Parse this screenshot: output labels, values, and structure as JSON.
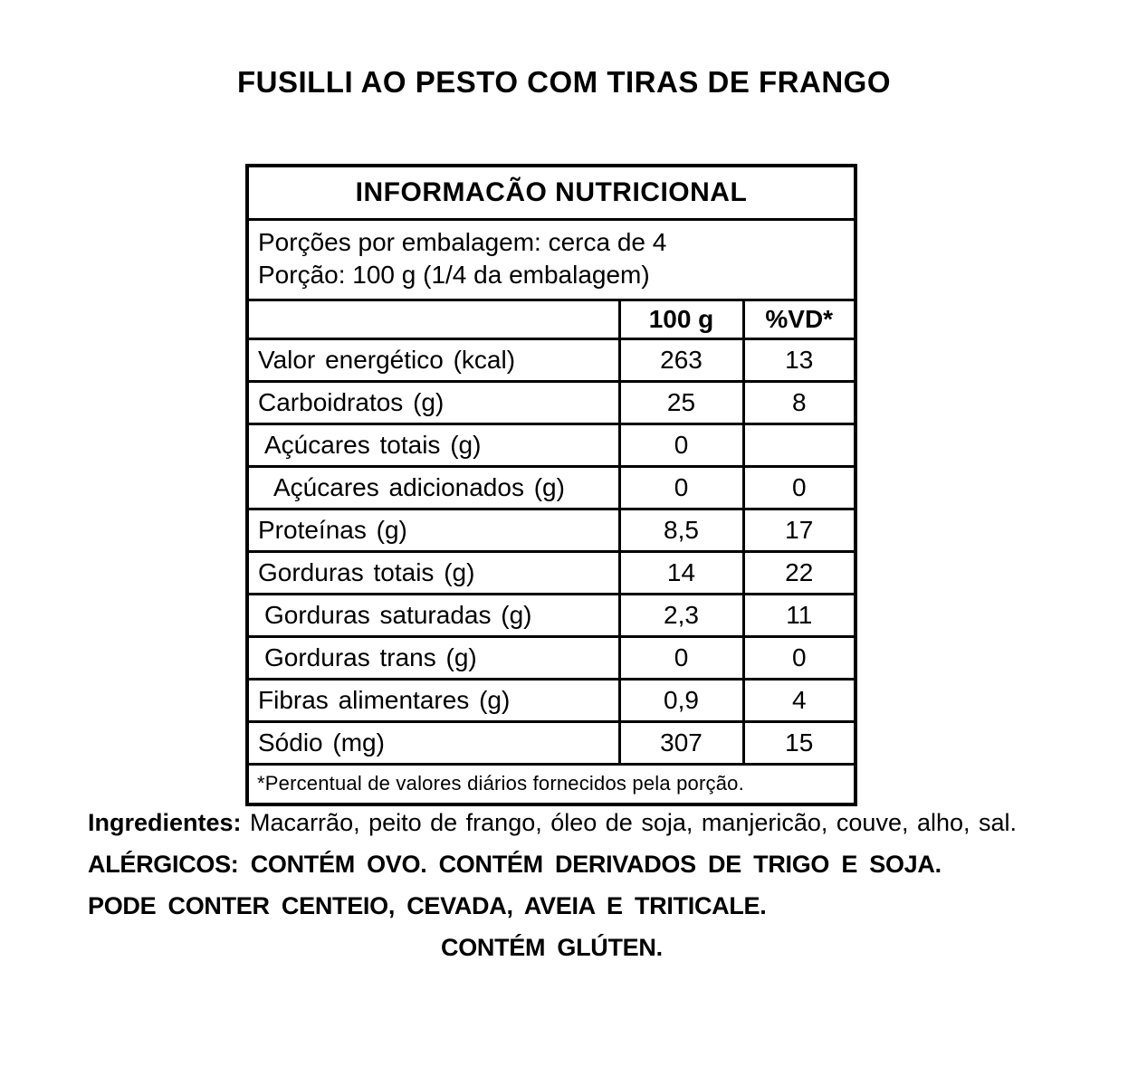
{
  "page": {
    "title": "FUSILLI AO PESTO COM TIRAS DE FRANGO"
  },
  "nutrition": {
    "title": "INFORMACÃO NUTRICIONAL",
    "serving_lines": [
      "Porções por embalagem: cerca de 4",
      "Porção: 100 g (1/4 da embalagem)"
    ],
    "columns": [
      "",
      "100 g",
      "%VD*"
    ],
    "rows": [
      {
        "label": "Valor energético (kcal)",
        "indent": 0,
        "per100g": "263",
        "vd": "13"
      },
      {
        "label": "Carboidratos (g)",
        "indent": 0,
        "per100g": "25",
        "vd": "8"
      },
      {
        "label": "Açúcares totais (g)",
        "indent": 1,
        "per100g": "0",
        "vd": ""
      },
      {
        "label": "Açúcares adicionados (g)",
        "indent": 2,
        "per100g": "0",
        "vd": "0"
      },
      {
        "label": "Proteínas (g)",
        "indent": 0,
        "per100g": "8,5",
        "vd": "17"
      },
      {
        "label": "Gorduras totais (g)",
        "indent": 0,
        "per100g": "14",
        "vd": "22"
      },
      {
        "label": "Gorduras saturadas (g)",
        "indent": 1,
        "per100g": "2,3",
        "vd": "11"
      },
      {
        "label": "Gorduras trans (g)",
        "indent": 1,
        "per100g": "0",
        "vd": "0"
      },
      {
        "label": "Fibras alimentares (g)",
        "indent": 0,
        "per100g": "0,9",
        "vd": "4"
      },
      {
        "label": "Sódio (mg)",
        "indent": 0,
        "per100g": "307",
        "vd": "15"
      }
    ],
    "footnote": "*Percentual de valores diários fornecidos pela porção."
  },
  "details": {
    "ingredients_label": "Ingredientes:",
    "ingredients_text": "Macarrão, peito de frango, óleo de soja, manjericão, couve, alho, sal.",
    "allergens_line1": "ALÉRGICOS: CONTÉM OVO. CONTÉM DERIVADOS DE TRIGO E SOJA.",
    "allergens_line2": "PODE CONTER CENTEIO, CEVADA, AVEIA E TRITICALE.",
    "gluten_line": "CONTÉM GLÚTEN."
  },
  "colors": {
    "text": "#000000",
    "background": "#ffffff",
    "border": "#000000"
  }
}
